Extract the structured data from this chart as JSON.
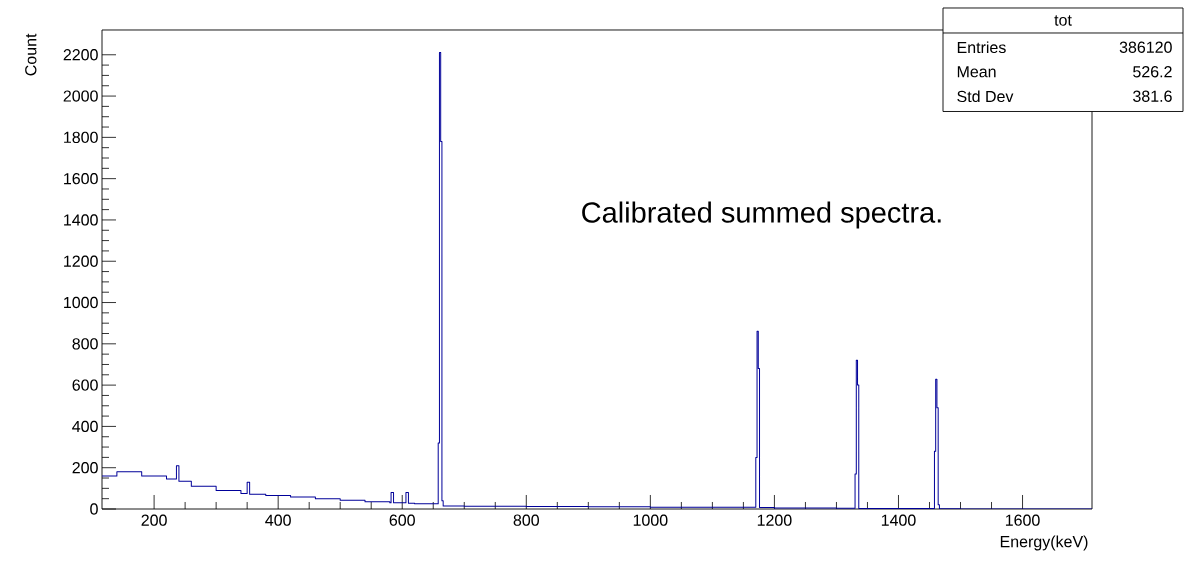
{
  "chart_data": {
    "type": "histogram",
    "xlabel": "Energy(keV)",
    "ylabel": "Count",
    "annotations": [
      "Calibrated summed spectra.",
      "tot",
      "Entries",
      "386120",
      "Mean",
      "526.2",
      "Std Dev",
      "381.6"
    ],
    "bins": [
      116,
      140,
      180,
      220,
      236,
      240,
      260,
      300,
      340,
      350,
      354,
      380,
      420,
      460,
      500,
      540,
      580,
      582,
      586,
      606,
      610,
      620,
      658,
      660,
      662,
      664,
      666,
      700,
      800,
      900,
      1000,
      1100,
      1170,
      1172,
      1174,
      1176,
      1200,
      1300,
      1330,
      1332,
      1334,
      1336,
      1400,
      1458,
      1460,
      1462,
      1464,
      1466,
      1500,
      1712
    ],
    "values": [
      160,
      180,
      160,
      145,
      210,
      135,
      110,
      90,
      75,
      130,
      72,
      65,
      58,
      50,
      42,
      35,
      30,
      80,
      30,
      80,
      28,
      25,
      320,
      2211,
      1780,
      40,
      15,
      13,
      12,
      11,
      9,
      8,
      250,
      861,
      680,
      7,
      5,
      4,
      170,
      721,
      600,
      3,
      2,
      280,
      629,
      490,
      20,
      1,
      0
    ],
    "color": "#000099",
    "xlim": [
      116,
      1712
    ],
    "ylim": [
      0,
      2320
    ],
    "xticks": [
      200,
      400,
      600,
      800,
      1000,
      1200,
      1400,
      1600
    ],
    "yticks": [
      0,
      200,
      400,
      600,
      800,
      1000,
      1200,
      1400,
      1600,
      1800,
      2000,
      2200
    ]
  }
}
